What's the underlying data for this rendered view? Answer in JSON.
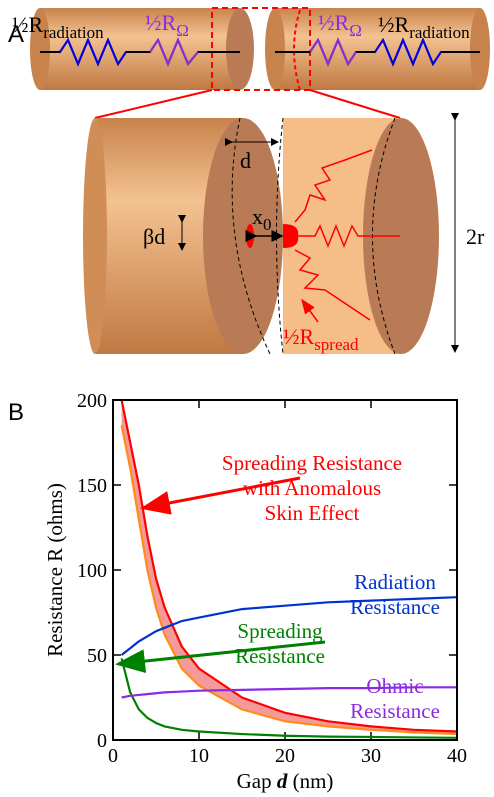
{
  "panel_labels": [
    "A",
    "B"
  ],
  "diagram": {
    "labels": [
      {
        "main": "½R",
        "sub": "radiation"
      },
      {
        "main": "½R",
        "sub": "Ω"
      },
      {
        "main": "½R",
        "sub": "Ω"
      },
      {
        "main": "½R",
        "sub": "radiation"
      },
      {
        "main": "d"
      },
      {
        "main": "βd"
      },
      {
        "main": "x",
        "sub": "0"
      },
      {
        "main": "2r"
      },
      {
        "main": "½R",
        "sub": "spread"
      }
    ]
  },
  "chart_data": {
    "type": "line",
    "ylabel": "Resistance R (ohms)",
    "xlabel_parts": [
      "Gap ",
      "d",
      " (nm)"
    ],
    "x": [
      1,
      2,
      3,
      4,
      5,
      6,
      8,
      10,
      15,
      20,
      25,
      30,
      35,
      40
    ],
    "xlim": [
      0,
      40
    ],
    "xticks": [
      0,
      10,
      20,
      30,
      40
    ],
    "ylim": [
      0,
      200
    ],
    "yticks": [
      0,
      50,
      100,
      150,
      200
    ],
    "series": [
      {
        "color": "#ff0000",
        "values": [
          200,
          175,
          150,
          120,
          95,
          78,
          55,
          42,
          25,
          16,
          11,
          8,
          6,
          5
        ]
      },
      {
        "color": "#ff8c1a",
        "values": [
          185,
          160,
          130,
          100,
          78,
          62,
          42,
          32,
          18,
          11,
          8,
          6,
          4.5,
          3.5
        ]
      },
      {
        "color": "#0033cc",
        "values": [
          50,
          54,
          58,
          61,
          64,
          66,
          70,
          72,
          77,
          79,
          81,
          82,
          83,
          84
        ]
      },
      {
        "color": "#008000",
        "values": [
          48,
          28,
          18,
          13,
          10,
          8,
          6,
          5,
          3.5,
          2.5,
          2,
          1.8,
          1.5,
          1.3
        ]
      },
      {
        "color": "#8a2be2",
        "values": [
          25,
          26,
          26.5,
          27,
          27.5,
          28,
          28.5,
          29,
          29.5,
          30,
          30.5,
          30.5,
          31,
          31
        ]
      }
    ],
    "fill_between": [
      0,
      1
    ],
    "fill_color": "#f59a9a",
    "annotations": [
      {
        "color": "#ff0000",
        "lines": [
          "Spreading Resistance",
          "with Anomalous",
          "Skin Effect"
        ]
      },
      {
        "color": "#0033cc",
        "lines": [
          "Radiation",
          "Resistance"
        ]
      },
      {
        "color": "#008000",
        "lines": [
          "Spreading",
          "Resistance"
        ]
      },
      {
        "color": "#8a2be2",
        "lines": [
          "Ohmic",
          "Resistance"
        ]
      }
    ]
  }
}
